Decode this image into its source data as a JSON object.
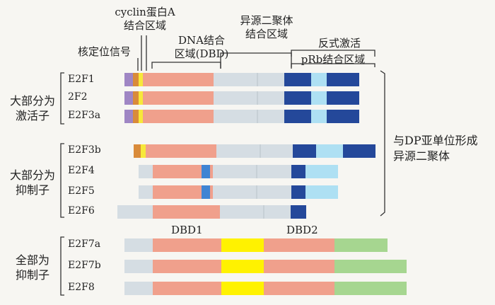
{
  "colors": {
    "purple": "#9f86c4",
    "orange": "#d98b3a",
    "yellow": "#f7e83a",
    "dbd": "#f0a08c",
    "gray": "#d5dde3",
    "navy": "#24489a",
    "lightblue": "#aee0f3",
    "midblue": "#3f84d3",
    "green": "#a6d690",
    "bar_yellow": "#fff200"
  },
  "headers": {
    "cyclin": [
      "cyclin蛋白A",
      "结合区域"
    ],
    "nuclear": "核定位信号",
    "dna": [
      "DNA结合",
      "区域(DBD)"
    ],
    "hetero": [
      "异源二聚体",
      "结合区域"
    ],
    "trans": "反式激活",
    "prb": "pRb结合区域",
    "dbd1": "DBD1",
    "dbd2": "DBD2"
  },
  "groups": {
    "activators": [
      "大部分为",
      "激活子"
    ],
    "repressors": [
      "大部分为",
      "抑制子"
    ],
    "all_repressors": [
      "全部为",
      "抑制子"
    ]
  },
  "side_note": [
    "与DP亚单位形成",
    "异源二聚体"
  ],
  "proteins": [
    {
      "name": "E2F1",
      "segments": [
        "purple",
        "orange",
        "yellow",
        "dbd",
        "gray",
        "navy",
        "lightblue",
        "navy"
      ]
    },
    {
      "name": "2F2",
      "segments": [
        "purple",
        "orange",
        "yellow",
        "dbd",
        "gray",
        "navy",
        "lightblue",
        "navy"
      ]
    },
    {
      "name": "E2F3a",
      "segments": [
        "purple",
        "orange",
        "yellow",
        "dbd",
        "gray",
        "navy",
        "lightblue",
        "navy"
      ]
    },
    {
      "name": "E2F3b",
      "segments": [
        "orange",
        "yellow",
        "dbd",
        "gray",
        "navy",
        "lightblue",
        "navy"
      ]
    },
    {
      "name": "E2F4",
      "segments": [
        "gray",
        "dbd",
        "midblue",
        "gray",
        "navy",
        "lightblue",
        "navy"
      ]
    },
    {
      "name": "E2F5",
      "segments": [
        "gray",
        "dbd",
        "midblue",
        "gray",
        "navy",
        "lightblue",
        "navy"
      ]
    },
    {
      "name": "E2F6",
      "segments": [
        "gray",
        "dbd",
        "gray",
        "navy"
      ]
    },
    {
      "name": "E2F7a",
      "segments": [
        "gray",
        "dbd",
        "bar_yellow",
        "dbd",
        "green"
      ]
    },
    {
      "name": "E2F7b",
      "segments": [
        "gray",
        "dbd",
        "bar_yellow",
        "dbd",
        "green"
      ]
    },
    {
      "name": "E2F8",
      "segments": [
        "gray",
        "dbd",
        "bar_yellow",
        "dbd",
        "green"
      ]
    }
  ]
}
